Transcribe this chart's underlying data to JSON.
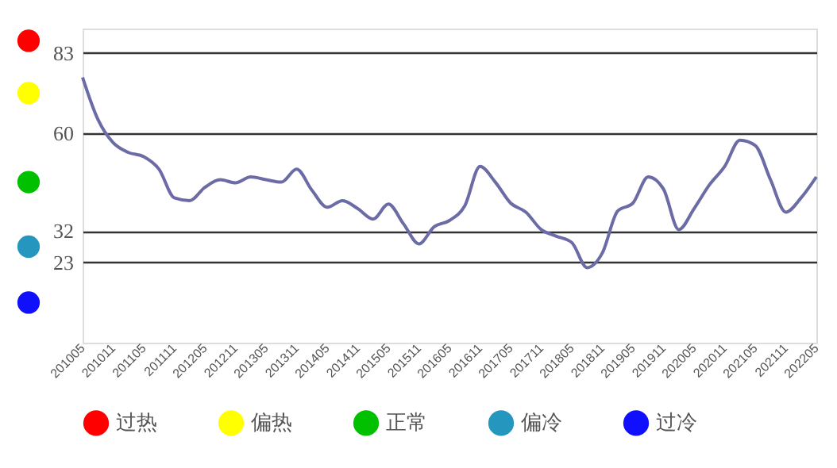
{
  "chart_data": {
    "type": "line",
    "categories": [
      "201005",
      null,
      "201011",
      null,
      "201105",
      null,
      "201111",
      null,
      "201205",
      null,
      "201211",
      null,
      "201305",
      null,
      "201311",
      null,
      "201405",
      null,
      "201411",
      null,
      "201505",
      null,
      "201511",
      null,
      "201605",
      null,
      "201611",
      null,
      "201705",
      null,
      "201711",
      null,
      "201805",
      null,
      "201811",
      null,
      "201905",
      null,
      "201911",
      null,
      "202005",
      null,
      "202011",
      null,
      "202105",
      null,
      "202111",
      null,
      "202205"
    ],
    "series": [
      {
        "color": "#6b6ba6",
        "values": [
          76,
          64,
          57.3,
          54.5,
          53.3,
          49.7,
          41.5,
          40.7,
          44.5,
          46.7,
          45.8,
          47.5,
          46.7,
          46,
          49.7,
          43.7,
          38.8,
          40.7,
          38.4,
          35.4,
          39.7,
          34,
          28.3,
          33.2,
          35,
          39.2,
          50.5,
          46,
          40,
          37.4,
          32.4,
          30.5,
          28.7,
          21.5,
          25.7,
          37.7,
          40,
          47.5,
          44,
          32.4,
          38.4,
          45.2,
          50.5,
          58,
          56.5,
          46.7,
          37.4,
          41.5,
          47.5
        ]
      },
      {
        "name": "过热",
        "color": "#ff0000",
        "type": "scatter",
        "values": [
          null,
          null,
          null,
          null,
          null,
          null,
          null,
          null,
          null,
          null,
          null,
          null,
          null,
          null,
          null,
          null,
          null,
          null,
          null,
          null,
          null,
          null,
          null,
          null,
          null,
          null,
          null,
          null,
          null,
          null,
          null,
          null,
          null,
          null,
          null,
          null,
          null,
          null,
          null,
          null,
          null,
          null,
          null,
          null,
          null,
          null,
          null,
          null,
          null
        ]
      },
      {
        "name": "偏热",
        "color": "#ffff00",
        "type": "scatter",
        "values": [
          null,
          null,
          null,
          null,
          null,
          null,
          null,
          null,
          null,
          null,
          null,
          null,
          null,
          null,
          null,
          null,
          null,
          null,
          null,
          null,
          null,
          null,
          null,
          null,
          null,
          null,
          null,
          null,
          null,
          null,
          null,
          null,
          null,
          null,
          null,
          null,
          null,
          null,
          null,
          null,
          null,
          null,
          null,
          null,
          null,
          null,
          null,
          null,
          null
        ]
      },
      {
        "name": "正常",
        "color": "#00c000",
        "type": "scatter",
        "values": [
          null,
          null,
          null,
          null,
          null,
          null,
          null,
          null,
          null,
          null,
          null,
          null,
          null,
          null,
          null,
          null,
          null,
          null,
          null,
          null,
          null,
          null,
          null,
          null,
          null,
          null,
          null,
          null,
          null,
          null,
          null,
          null,
          null,
          null,
          null,
          null,
          null,
          null,
          null,
          null,
          null,
          null,
          null,
          null,
          null,
          null,
          null,
          null,
          null
        ]
      },
      {
        "name": "偏冷",
        "color": "#2596be",
        "type": "scatter",
        "values": [
          null,
          null,
          null,
          null,
          null,
          null,
          null,
          null,
          null,
          null,
          null,
          null,
          null,
          null,
          null,
          null,
          null,
          null,
          null,
          null,
          null,
          null,
          null,
          null,
          null,
          null,
          null,
          null,
          null,
          null,
          null,
          null,
          null,
          null,
          null,
          null,
          null,
          null,
          null,
          null,
          null,
          null,
          null,
          null,
          null,
          null,
          null,
          null,
          null
        ]
      },
      {
        "name": "过冷",
        "color": "#1010ff",
        "type": "scatter",
        "values": [
          null,
          null,
          null,
          null,
          null,
          null,
          null,
          null,
          null,
          null,
          null,
          null,
          null,
          null,
          null,
          null,
          null,
          null,
          null,
          null,
          null,
          null,
          null,
          null,
          null,
          null,
          null,
          null,
          null,
          null,
          null,
          null,
          null,
          null,
          null,
          null,
          null,
          null,
          null,
          null,
          null,
          null,
          null,
          null,
          null,
          null,
          null,
          null,
          null
        ]
      }
    ],
    "ylim": [
      0,
      90
    ],
    "yticks": [
      23,
      32,
      60,
      83
    ],
    "grid": "y",
    "legend": "bottom",
    "line_style": "solid",
    "marker": "none"
  }
}
